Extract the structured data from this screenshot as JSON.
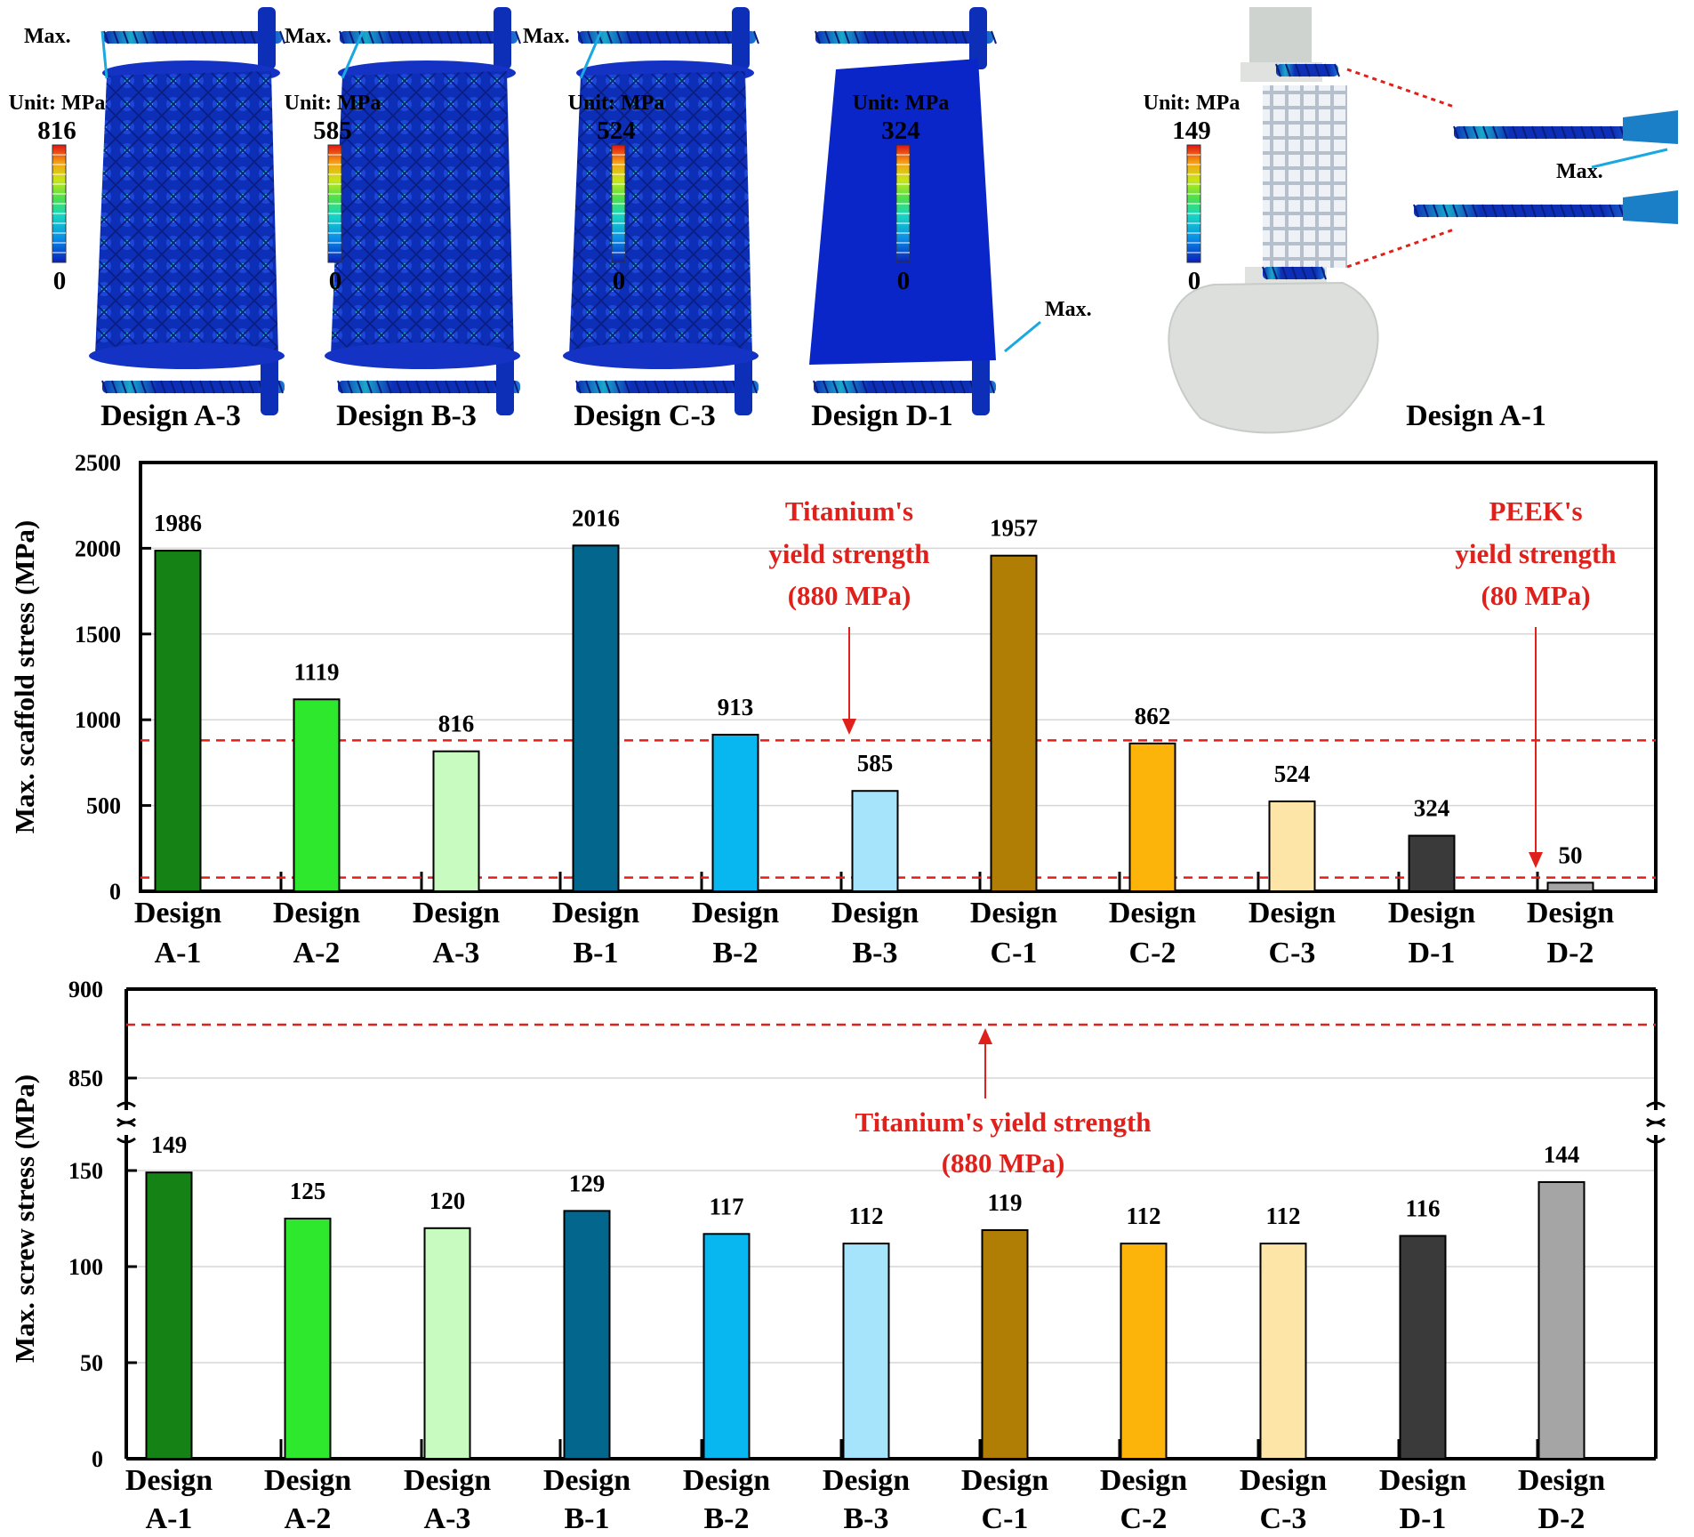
{
  "colors": {
    "A1": "#148214",
    "A2": "#2ee82e",
    "A3": "#c8fbbf",
    "B1": "#03668c",
    "B2": "#08b6f0",
    "B3": "#a5e4fb",
    "C1": "#b07d05",
    "C2": "#fdb40a",
    "C3": "#fde5a8",
    "D1": "#3a3a3a",
    "D2": "#a5a5a5",
    "yield_line": "#e0201b",
    "fe_blue": "#0d2fb8"
  },
  "fe_panels": [
    {
      "caption": "Design A-3",
      "unit": "Unit: MPa",
      "max_value": "816",
      "min_value": "0",
      "max_label": "Max.",
      "shape": "lattice"
    },
    {
      "caption": "Design B-3",
      "unit": "Unit: MPa",
      "max_value": "585",
      "min_value": "0",
      "max_label": "Max.",
      "shape": "lattice"
    },
    {
      "caption": "Design C-3",
      "unit": "Unit: MPa",
      "max_value": "524",
      "min_value": "0",
      "max_label": "Max.",
      "shape": "lattice"
    },
    {
      "caption": "Design D-1",
      "unit": "Unit: MPa",
      "max_value": "324",
      "min_value": "0",
      "max_label": "Max.",
      "shape": "solid"
    },
    {
      "caption": "Design A-1",
      "unit": "Unit: MPa",
      "max_value": "149",
      "min_value": "0",
      "max_label": "Max.",
      "shape": "bone"
    }
  ],
  "chart_data": [
    {
      "type": "bar",
      "title": "",
      "xlabel": "",
      "ylabel": "Max. scaffold stress (MPa)",
      "categories": [
        [
          "Design",
          "A-1"
        ],
        [
          "Design",
          "A-2"
        ],
        [
          "Design",
          "A-3"
        ],
        [
          "Design",
          "B-1"
        ],
        [
          "Design",
          "B-2"
        ],
        [
          "Design",
          "B-3"
        ],
        [
          "Design",
          "C-1"
        ],
        [
          "Design",
          "C-2"
        ],
        [
          "Design",
          "C-3"
        ],
        [
          "Design",
          "D-1"
        ],
        [
          "Design",
          "D-2"
        ]
      ],
      "values": [
        1986,
        1119,
        816,
        2016,
        913,
        585,
        1957,
        862,
        524,
        324,
        50
      ],
      "color_keys": [
        "A1",
        "A2",
        "A3",
        "B1",
        "B2",
        "B3",
        "C1",
        "C2",
        "C3",
        "D1",
        "D2"
      ],
      "ylim": [
        0,
        2500
      ],
      "yticks": [
        0,
        500,
        1000,
        1500,
        2000,
        2500
      ],
      "grid": true,
      "reference_lines": [
        {
          "value": 880,
          "label": [
            "Titanium's",
            "yield strength",
            "(880 MPa)"
          ]
        },
        {
          "value": 80,
          "label": [
            "PEEK's",
            "yield strength",
            "(80 MPa)"
          ]
        }
      ]
    },
    {
      "type": "bar",
      "title": "",
      "xlabel": "",
      "ylabel": "Max. screw stress (MPa)",
      "categories": [
        [
          "Design",
          "A-1"
        ],
        [
          "Design",
          "A-2"
        ],
        [
          "Design",
          "A-3"
        ],
        [
          "Design",
          "B-1"
        ],
        [
          "Design",
          "B-2"
        ],
        [
          "Design",
          "B-3"
        ],
        [
          "Design",
          "C-1"
        ],
        [
          "Design",
          "C-2"
        ],
        [
          "Design",
          "C-3"
        ],
        [
          "Design",
          "D-1"
        ],
        [
          "Design",
          "D-2"
        ]
      ],
      "values": [
        149,
        125,
        120,
        129,
        117,
        112,
        119,
        112,
        112,
        116,
        144
      ],
      "color_keys": [
        "A1",
        "A2",
        "A3",
        "B1",
        "B2",
        "B3",
        "C1",
        "C2",
        "C3",
        "D1",
        "D2"
      ],
      "axis_break": true,
      "ylim_lower": [
        0,
        175
      ],
      "ylim_upper": [
        825,
        900
      ],
      "yticks_lower": [
        0,
        50,
        100,
        150
      ],
      "yticks_upper": [
        850,
        900
      ],
      "grid": true,
      "reference_lines": [
        {
          "value": 880,
          "label": [
            "Titanium's yield strength",
            "(880 MPa)"
          ]
        }
      ]
    }
  ]
}
